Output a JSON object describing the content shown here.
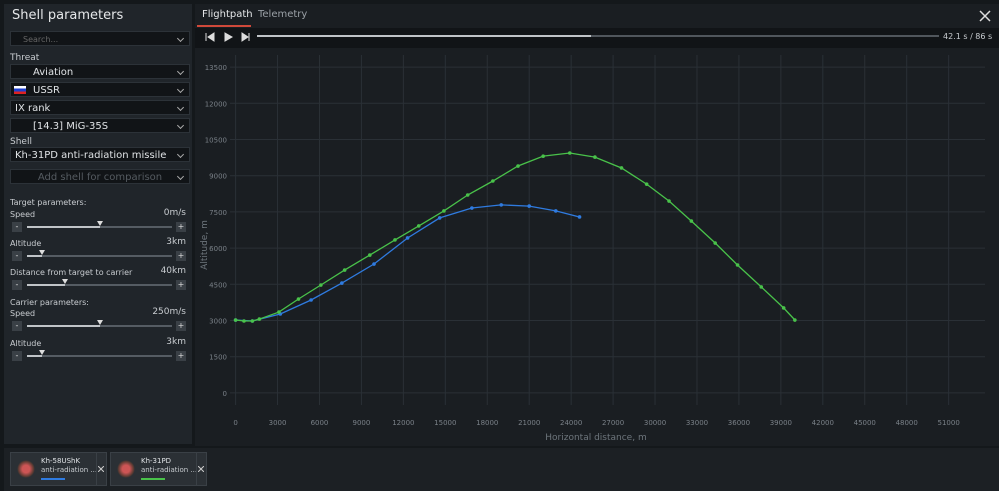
{
  "panel": {
    "title": "Shell parameters",
    "search": "Search...",
    "threat_label": "Threat",
    "threat": "Aviation",
    "country": "USSR",
    "rank": "IX rank",
    "aircraft": "[14.3] MiG-35S",
    "shell_label": "Shell",
    "shell": "Kh-31PD anti-radiation missile",
    "add_shell": "Add shell for comparison",
    "target_heading": "Target parameters:",
    "target": [
      {
        "label": "Speed",
        "value": "0m/s"
      },
      {
        "label": "Altitude",
        "value": "3km"
      },
      {
        "label": "Distance from target to carrier",
        "value": "40km"
      }
    ],
    "carrier_heading": "Carrier parameters:",
    "carrier": [
      {
        "label": "Speed",
        "value": "250m/s"
      },
      {
        "label": "Altitude",
        "value": "3km"
      }
    ],
    "slider_buttons": [
      "-",
      "+"
    ]
  },
  "tabs": [
    "Flightpath",
    "Telemetry"
  ],
  "playback": {
    "time": "42.1 s / 86 s"
  },
  "chart_data": {
    "type": "line",
    "x_label": "Horizontal distance, m",
    "y_label": "Altitude, m",
    "xlim": [
      -400,
      53600
    ],
    "ylim": [
      -500,
      14000
    ],
    "xticks": [
      0,
      3000,
      6000,
      9000,
      12000,
      15000,
      18000,
      21000,
      24000,
      27000,
      30000,
      33000,
      36000,
      39000,
      42000,
      45000,
      48000,
      51000
    ],
    "yticks": [
      0,
      1500,
      3000,
      4500,
      6000,
      7500,
      9000,
      10500,
      12000,
      13500
    ],
    "grid": true,
    "series": [
      {
        "name": "Kh-58UShK",
        "subtitle": "anti-radiation ...",
        "color": "#2f7be0",
        "x": [
          0,
          1200,
          3200,
          5400,
          7600,
          9900,
          12300,
          14600,
          16900,
          19000,
          21000,
          22900,
          24600
        ],
        "values": [
          3020,
          2980,
          3270,
          3850,
          4550,
          5340,
          6420,
          7250,
          7660,
          7790,
          7740,
          7540,
          7290
        ]
      },
      {
        "name": "Kh-31PD",
        "subtitle": "anti-radiation ...",
        "color": "#49c24a",
        "x": [
          0,
          600,
          1200,
          1700,
          3100,
          4500,
          6100,
          7800,
          9600,
          11400,
          13100,
          14900,
          16600,
          18400,
          20200,
          22000,
          23900,
          25700,
          27600,
          29400,
          31000,
          32600,
          34300,
          35900,
          37600,
          39200,
          40000
        ],
        "values": [
          3020,
          2980,
          2980,
          3060,
          3350,
          3890,
          4470,
          5090,
          5710,
          6340,
          6920,
          7540,
          8200,
          8780,
          9400,
          9810,
          9940,
          9770,
          9320,
          8650,
          7950,
          7120,
          6210,
          5300,
          4390,
          3520,
          3020
        ]
      }
    ]
  }
}
